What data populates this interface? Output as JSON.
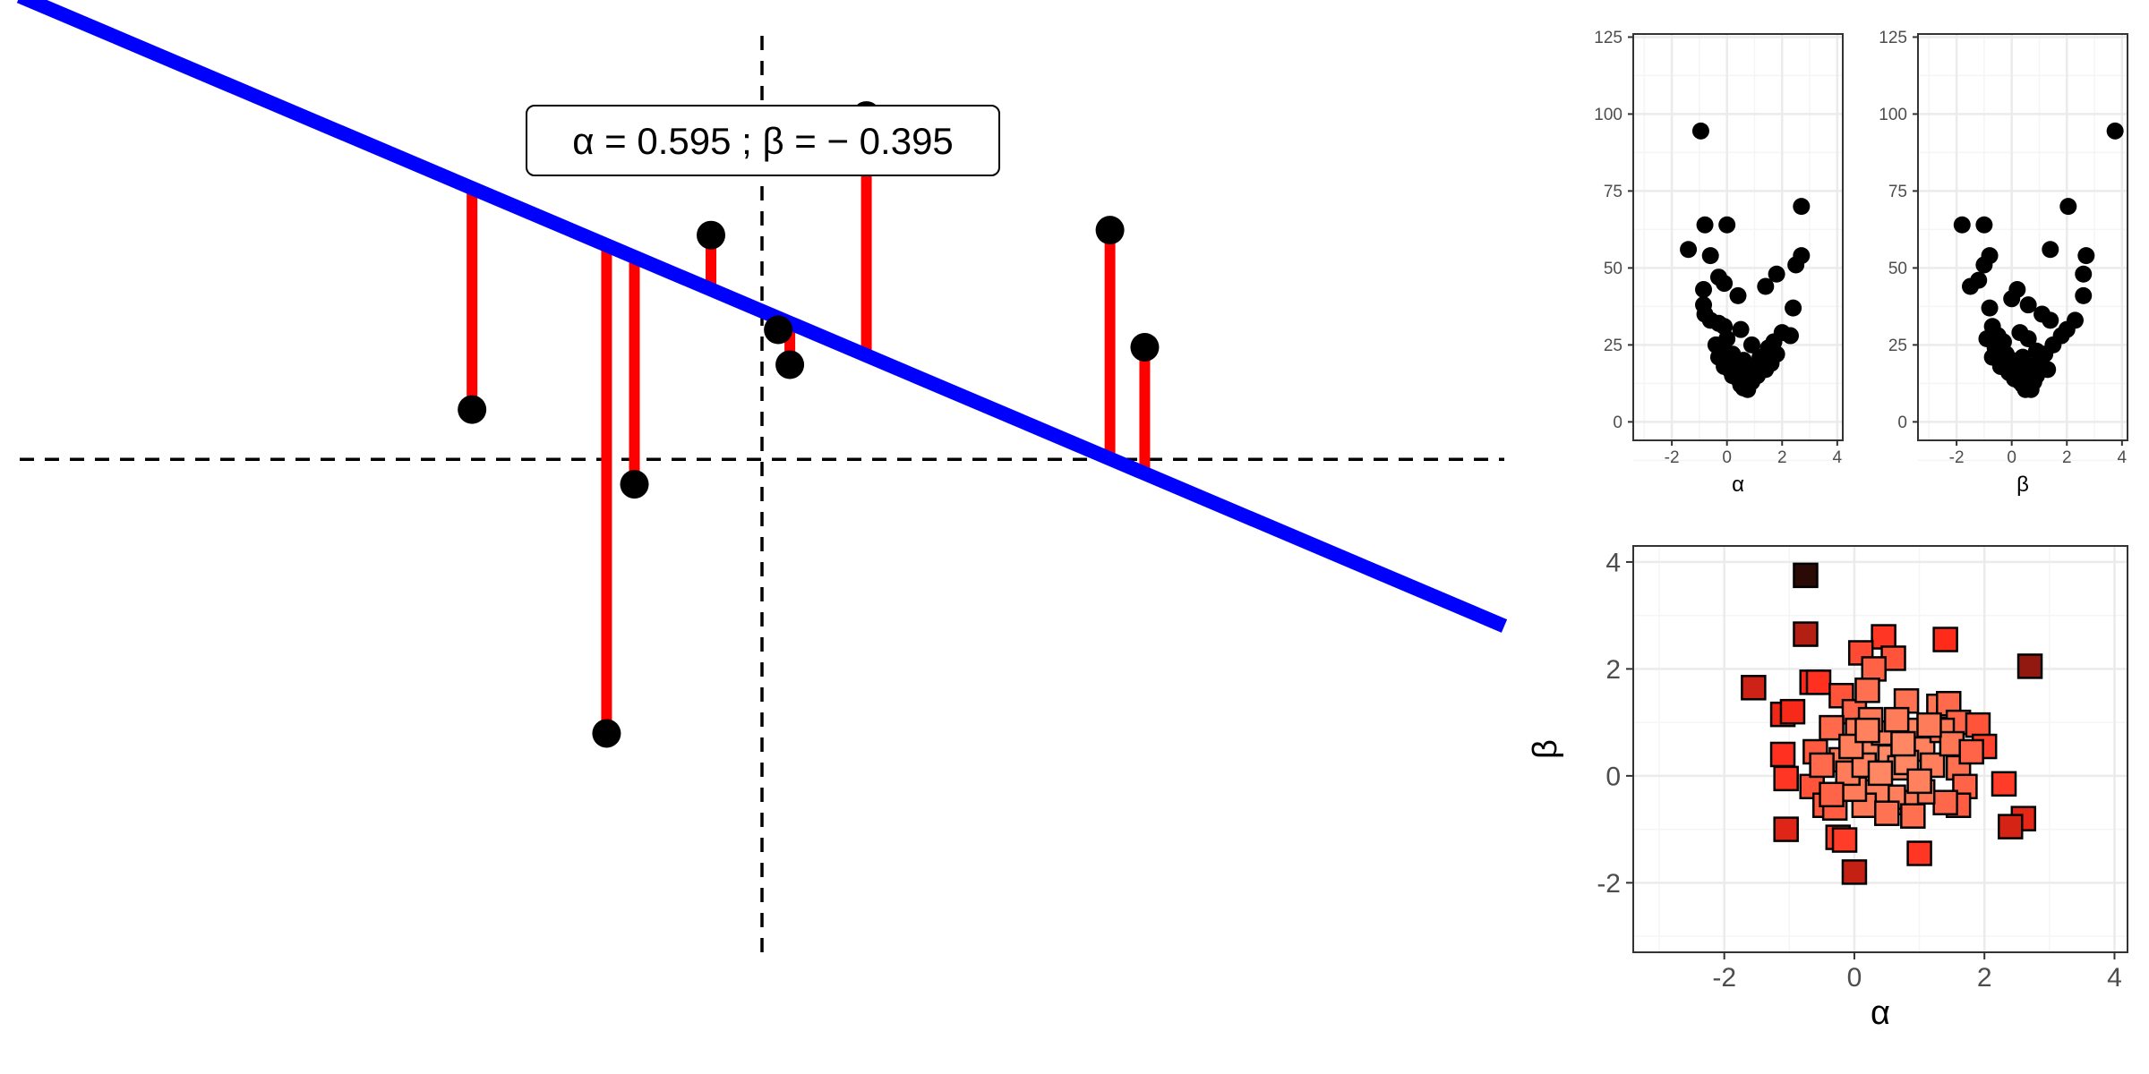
{
  "colors": {
    "regression_line": "#0000ff",
    "residual": "#ff0000",
    "point": "#000000",
    "grid_major": "#ebebeb",
    "grid_minor": "#f5f5f5",
    "panel_border": "#333333",
    "tick_text": "#4d4d4d",
    "square_fill_light": "#ff8a65",
    "square_fill_mid": "#ff2a1a",
    "square_fill_dark": "#2a0a04"
  },
  "chart_data": [
    {
      "type": "scatter",
      "panel": "regression",
      "annotation": "α =  0.595 ;  β =  − 0.395",
      "line": {
        "intercept": 0.595,
        "slope": -0.395
      },
      "xlim": [
        -3.2,
        3.2
      ],
      "ylim": [
        -2.0,
        1.7
      ],
      "reference_lines": {
        "x": 0,
        "y": 0
      },
      "grid": false,
      "xlabel": "",
      "ylabel": "",
      "points": [
        {
          "x": -1.25,
          "y": 0.2
        },
        {
          "x": -0.67,
          "y": -1.1
        },
        {
          "x": -0.55,
          "y": -0.1
        },
        {
          "x": -0.22,
          "y": 0.9
        },
        {
          "x": 0.07,
          "y": 0.52
        },
        {
          "x": 0.12,
          "y": 0.38
        },
        {
          "x": 0.45,
          "y": 1.38
        },
        {
          "x": 1.5,
          "y": 0.92
        },
        {
          "x": 1.65,
          "y": 0.45
        }
      ]
    },
    {
      "type": "scatter",
      "panel": "loss-vs-alpha",
      "xlabel": "α",
      "ylabel": "",
      "xlim": [
        -3.4,
        4.2
      ],
      "ylim": [
        -6,
        126
      ],
      "xticks": [
        "-2",
        "0",
        "2",
        "4"
      ],
      "yticks": [
        "0",
        "25",
        "50",
        "75",
        "100",
        "125"
      ],
      "grid": true,
      "points": [
        {
          "x": -0.95,
          "y": 94.5
        },
        {
          "x": 2.7,
          "y": 70
        },
        {
          "x": -0.8,
          "y": 64
        },
        {
          "x": 0.0,
          "y": 64
        },
        {
          "x": -1.4,
          "y": 56
        },
        {
          "x": -0.6,
          "y": 54
        },
        {
          "x": 2.7,
          "y": 54
        },
        {
          "x": 2.5,
          "y": 51
        },
        {
          "x": 1.8,
          "y": 48
        },
        {
          "x": -0.3,
          "y": 47
        },
        {
          "x": -0.1,
          "y": 45
        },
        {
          "x": 1.4,
          "y": 44
        },
        {
          "x": -0.85,
          "y": 43
        },
        {
          "x": 0.4,
          "y": 41
        },
        {
          "x": -0.85,
          "y": 38
        },
        {
          "x": 2.4,
          "y": 37
        },
        {
          "x": -0.8,
          "y": 35
        },
        {
          "x": -0.6,
          "y": 33
        },
        {
          "x": -0.3,
          "y": 32
        },
        {
          "x": -0.1,
          "y": 31
        },
        {
          "x": 0.5,
          "y": 30
        },
        {
          "x": 2.0,
          "y": 29
        },
        {
          "x": 2.3,
          "y": 28
        },
        {
          "x": 0.0,
          "y": 27
        },
        {
          "x": 1.7,
          "y": 26
        },
        {
          "x": -0.4,
          "y": 25
        },
        {
          "x": 0.9,
          "y": 25
        },
        {
          "x": 1.5,
          "y": 24
        },
        {
          "x": -0.2,
          "y": 23
        },
        {
          "x": 0.2,
          "y": 22
        },
        {
          "x": 1.8,
          "y": 22
        },
        {
          "x": -0.3,
          "y": 21
        },
        {
          "x": 1.2,
          "y": 21
        },
        {
          "x": 0.0,
          "y": 20
        },
        {
          "x": 0.6,
          "y": 20
        },
        {
          "x": 1.6,
          "y": 19
        },
        {
          "x": -0.1,
          "y": 18
        },
        {
          "x": 0.3,
          "y": 18
        },
        {
          "x": 1.0,
          "y": 18
        },
        {
          "x": 0.1,
          "y": 17
        },
        {
          "x": 1.4,
          "y": 17
        },
        {
          "x": 0.5,
          "y": 16
        },
        {
          "x": 0.8,
          "y": 16
        },
        {
          "x": 0.2,
          "y": 15
        },
        {
          "x": 1.1,
          "y": 15
        },
        {
          "x": 0.4,
          "y": 14
        },
        {
          "x": 0.7,
          "y": 14
        },
        {
          "x": 0.9,
          "y": 13
        },
        {
          "x": 0.5,
          "y": 12
        },
        {
          "x": 0.6,
          "y": 11
        },
        {
          "x": 0.75,
          "y": 10.5
        }
      ]
    },
    {
      "type": "scatter",
      "panel": "loss-vs-beta",
      "xlabel": "β",
      "ylabel": "",
      "xlim": [
        -3.4,
        4.2
      ],
      "ylim": [
        -6,
        126
      ],
      "xticks": [
        "-2",
        "0",
        "2",
        "4"
      ],
      "yticks": [
        "0",
        "25",
        "50",
        "75",
        "100",
        "125"
      ],
      "grid": true,
      "points": [
        {
          "x": 3.75,
          "y": 94.5
        },
        {
          "x": 2.05,
          "y": 70
        },
        {
          "x": -1.8,
          "y": 64
        },
        {
          "x": -1.0,
          "y": 64
        },
        {
          "x": 1.4,
          "y": 56
        },
        {
          "x": -0.8,
          "y": 54
        },
        {
          "x": 2.7,
          "y": 54
        },
        {
          "x": -1.0,
          "y": 51
        },
        {
          "x": 2.6,
          "y": 48
        },
        {
          "x": -1.2,
          "y": 46
        },
        {
          "x": -1.5,
          "y": 44
        },
        {
          "x": 0.2,
          "y": 43
        },
        {
          "x": 2.6,
          "y": 41
        },
        {
          "x": 0.0,
          "y": 40
        },
        {
          "x": 0.6,
          "y": 38
        },
        {
          "x": -0.8,
          "y": 37
        },
        {
          "x": 1.1,
          "y": 35
        },
        {
          "x": 1.4,
          "y": 33
        },
        {
          "x": 2.3,
          "y": 33
        },
        {
          "x": -0.7,
          "y": 31
        },
        {
          "x": 2.0,
          "y": 30
        },
        {
          "x": 0.3,
          "y": 29
        },
        {
          "x": -0.5,
          "y": 28
        },
        {
          "x": 1.8,
          "y": 28
        },
        {
          "x": -0.9,
          "y": 27
        },
        {
          "x": 0.6,
          "y": 27
        },
        {
          "x": -0.3,
          "y": 26
        },
        {
          "x": 1.5,
          "y": 25
        },
        {
          "x": -0.6,
          "y": 24
        },
        {
          "x": 0.9,
          "y": 23
        },
        {
          "x": -0.2,
          "y": 22
        },
        {
          "x": 1.2,
          "y": 22
        },
        {
          "x": -0.7,
          "y": 21
        },
        {
          "x": 0.4,
          "y": 21
        },
        {
          "x": 0.0,
          "y": 20
        },
        {
          "x": 1.0,
          "y": 19
        },
        {
          "x": -0.4,
          "y": 18
        },
        {
          "x": 0.7,
          "y": 18
        },
        {
          "x": 0.2,
          "y": 17
        },
        {
          "x": 1.3,
          "y": 17
        },
        {
          "x": -0.1,
          "y": 16
        },
        {
          "x": 0.5,
          "y": 16
        },
        {
          "x": 0.9,
          "y": 15
        },
        {
          "x": 0.1,
          "y": 14
        },
        {
          "x": 0.6,
          "y": 14
        },
        {
          "x": 0.3,
          "y": 13
        },
        {
          "x": 0.8,
          "y": 13
        },
        {
          "x": 0.4,
          "y": 12
        },
        {
          "x": 0.6,
          "y": 11
        },
        {
          "x": 0.5,
          "y": 10.5
        },
        {
          "x": 0.7,
          "y": 10.5
        }
      ]
    },
    {
      "type": "scatter",
      "panel": "alpha-vs-beta",
      "xlabel": "α",
      "ylabel": "β",
      "xlim": [
        -3.4,
        4.2
      ],
      "ylim": [
        -3.3,
        4.3
      ],
      "xticks": [
        "-2",
        "0",
        "2",
        "4"
      ],
      "yticks": [
        "-2",
        "0",
        "2",
        "4"
      ],
      "grid": true,
      "marker": "square",
      "fill_encodes": "loss",
      "points": [
        {
          "x": -0.75,
          "y": 3.75,
          "loss": 94
        },
        {
          "x": -0.75,
          "y": 2.65,
          "loss": 62
        },
        {
          "x": 0.45,
          "y": 2.6,
          "loss": 40
        },
        {
          "x": 1.4,
          "y": 2.55,
          "loss": 44
        },
        {
          "x": 2.7,
          "y": 2.05,
          "loss": 70
        },
        {
          "x": -1.55,
          "y": 1.65,
          "loss": 56
        },
        {
          "x": -0.65,
          "y": 1.75,
          "loss": 45
        },
        {
          "x": -0.55,
          "y": 1.75,
          "loss": 42
        },
        {
          "x": -0.2,
          "y": 1.5,
          "loss": 30
        },
        {
          "x": 0.0,
          "y": 1.2,
          "loss": 24
        },
        {
          "x": 0.1,
          "y": 2.3,
          "loss": 33
        },
        {
          "x": 0.6,
          "y": 2.2,
          "loss": 30
        },
        {
          "x": 0.3,
          "y": 2.0,
          "loss": 25
        },
        {
          "x": 0.2,
          "y": 1.6,
          "loss": 20
        },
        {
          "x": 0.8,
          "y": 1.4,
          "loss": 19
        },
        {
          "x": 1.3,
          "y": 1.3,
          "loss": 18
        },
        {
          "x": 1.45,
          "y": 1.35,
          "loss": 22
        },
        {
          "x": 1.6,
          "y": 1.0,
          "loss": 24
        },
        {
          "x": 1.9,
          "y": 0.95,
          "loss": 30
        },
        {
          "x": 2.0,
          "y": 0.55,
          "loss": 36
        },
        {
          "x": 2.3,
          "y": -0.15,
          "loss": 38
        },
        {
          "x": 2.6,
          "y": -0.8,
          "loss": 50
        },
        {
          "x": 2.4,
          "y": -0.95,
          "loss": 54
        },
        {
          "x": -1.1,
          "y": 1.15,
          "loss": 48
        },
        {
          "x": -0.95,
          "y": 1.2,
          "loss": 46
        },
        {
          "x": -1.1,
          "y": 0.4,
          "loss": 42
        },
        {
          "x": -1.05,
          "y": -0.05,
          "loss": 40
        },
        {
          "x": -1.05,
          "y": -1.0,
          "loss": 52
        },
        {
          "x": -0.25,
          "y": -1.15,
          "loss": 38
        },
        {
          "x": -0.15,
          "y": -1.2,
          "loss": 38
        },
        {
          "x": 0.0,
          "y": -1.8,
          "loss": 58
        },
        {
          "x": 1.0,
          "y": -1.45,
          "loss": 40
        },
        {
          "x": -0.6,
          "y": 0.45,
          "loss": 28
        },
        {
          "x": -0.65,
          "y": -0.2,
          "loss": 30
        },
        {
          "x": -0.45,
          "y": -0.55,
          "loss": 28
        },
        {
          "x": -0.3,
          "y": -0.6,
          "loss": 27
        },
        {
          "x": -0.2,
          "y": 0.3,
          "loss": 18
        },
        {
          "x": -0.35,
          "y": 0.9,
          "loss": 22
        },
        {
          "x": 0.05,
          "y": 0.85,
          "loss": 16
        },
        {
          "x": 0.3,
          "y": 0.5,
          "loss": 12
        },
        {
          "x": 0.45,
          "y": 0.8,
          "loss": 13
        },
        {
          "x": 0.55,
          "y": 0.35,
          "loss": 11
        },
        {
          "x": 0.7,
          "y": 0.15,
          "loss": 11
        },
        {
          "x": 0.9,
          "y": 0.85,
          "loss": 13
        },
        {
          "x": 1.05,
          "y": 0.5,
          "loss": 14
        },
        {
          "x": 1.2,
          "y": 0.2,
          "loss": 15
        },
        {
          "x": 1.35,
          "y": 0.85,
          "loss": 17
        },
        {
          "x": 1.5,
          "y": 0.6,
          "loss": 18
        },
        {
          "x": 1.6,
          "y": 0.15,
          "loss": 20
        },
        {
          "x": 1.7,
          "y": -0.2,
          "loss": 24
        },
        {
          "x": 1.6,
          "y": -0.55,
          "loss": 27
        },
        {
          "x": 1.4,
          "y": -0.5,
          "loss": 23
        },
        {
          "x": 1.05,
          "y": -0.3,
          "loss": 18
        },
        {
          "x": 0.8,
          "y": -0.5,
          "loss": 17
        },
        {
          "x": 0.6,
          "y": -0.4,
          "loss": 15
        },
        {
          "x": 0.35,
          "y": -0.3,
          "loss": 15
        },
        {
          "x": 0.15,
          "y": -0.55,
          "loss": 17
        },
        {
          "x": 0.0,
          "y": -0.25,
          "loss": 16
        },
        {
          "x": -0.1,
          "y": 0.05,
          "loss": 16
        },
        {
          "x": 0.15,
          "y": 0.2,
          "loss": 14
        },
        {
          "x": 0.4,
          "y": 0.05,
          "loss": 12
        },
        {
          "x": 0.8,
          "y": 0.25,
          "loss": 12
        },
        {
          "x": 1.0,
          "y": -0.1,
          "loss": 14
        },
        {
          "x": 0.9,
          "y": -0.75,
          "loss": 20
        },
        {
          "x": 0.5,
          "y": -0.7,
          "loss": 19
        },
        {
          "x": -0.35,
          "y": -0.35,
          "loss": 24
        },
        {
          "x": -0.05,
          "y": 0.55,
          "loss": 15
        },
        {
          "x": 0.25,
          "y": 1.05,
          "loss": 17
        },
        {
          "x": 0.65,
          "y": 1.05,
          "loss": 16
        },
        {
          "x": 1.15,
          "y": 0.95,
          "loss": 16
        },
        {
          "x": -0.5,
          "y": 0.2,
          "loss": 22
        },
        {
          "x": 1.8,
          "y": 0.45,
          "loss": 24
        },
        {
          "x": 0.2,
          "y": 0.85,
          "loss": 14
        },
        {
          "x": 0.75,
          "y": 0.6,
          "loss": 12
        }
      ]
    }
  ]
}
